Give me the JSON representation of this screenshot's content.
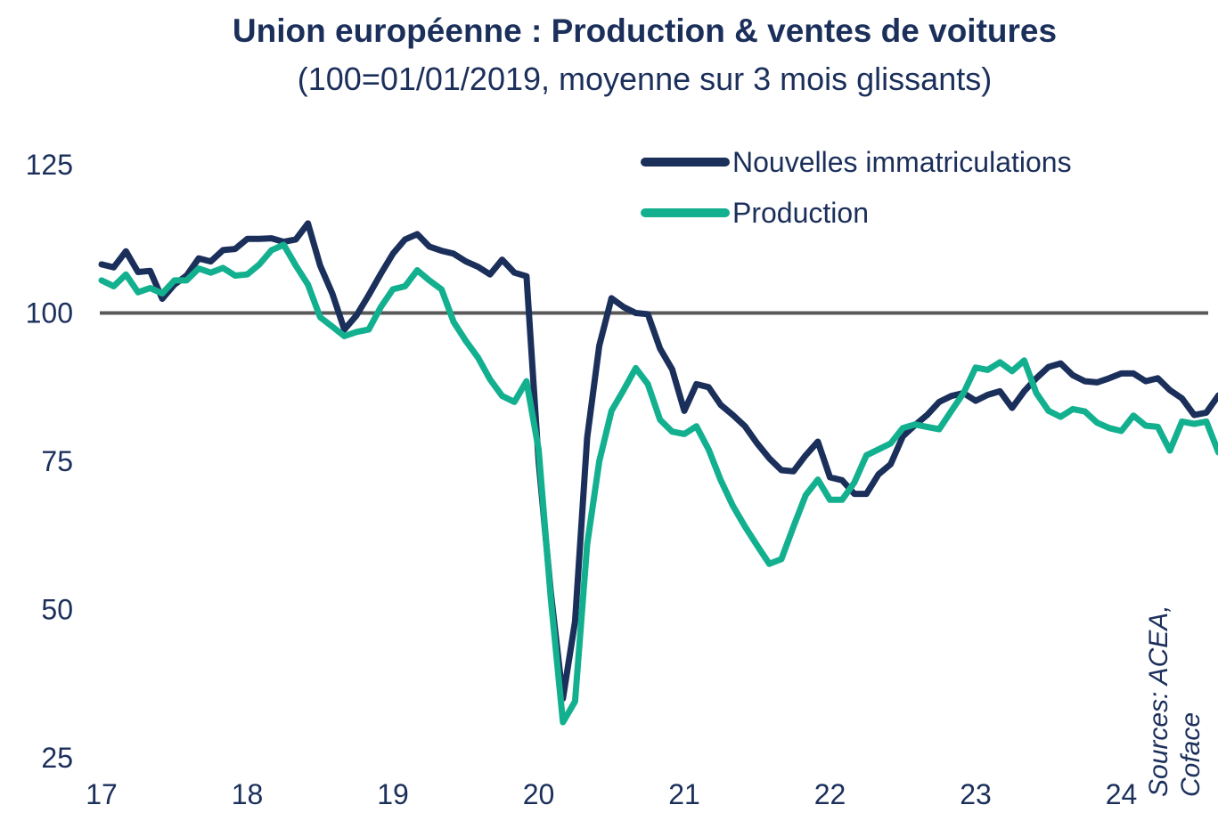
{
  "title": "Union européenne : Production & ventes de voitures",
  "subtitle": "(100=01/01/2019, moyenne sur 3 mois glissants)",
  "source": [
    "Sources: ACEA,",
    "Coface"
  ],
  "colors": {
    "registrations": "#1b2f5b",
    "production": "#13b08f",
    "reference": "#595959",
    "text": "#1b2f5b"
  },
  "chart_data": {
    "type": "line",
    "x_tick_labels": [
      "17",
      "18",
      "19",
      "20",
      "21",
      "22",
      "23",
      "24"
    ],
    "y_tick_labels": [
      "125",
      "100",
      "75",
      "50",
      "25"
    ],
    "xlim": [
      2017,
      2024.9
    ],
    "ylim": [
      25,
      125
    ],
    "reference_line": 100,
    "grid": false,
    "legend_position": "top-right",
    "x_step_months": 1,
    "x_start": "2017-01",
    "series": [
      {
        "name": "Nouvelles immatriculations",
        "color": "#1b2f5b",
        "values": [
          108.2,
          107.7,
          110.4,
          106.9,
          107.1,
          102.4,
          104.8,
          106.3,
          109.2,
          108.7,
          110.6,
          110.8,
          112.5,
          112.5,
          112.6,
          112.0,
          112.4,
          115.1,
          108.0,
          103.3,
          97.2,
          99.6,
          103.0,
          106.6,
          110.0,
          112.4,
          113.3,
          111.2,
          110.5,
          110.0,
          108.7,
          107.8,
          106.5,
          109.0,
          106.8,
          106.2,
          75.0,
          53.0,
          35.0,
          48.0,
          79.0,
          94.5,
          102.5,
          101.0,
          100.0,
          99.8,
          94.0,
          90.5,
          83.5,
          88.0,
          87.5,
          84.5,
          82.8,
          80.9,
          78.0,
          75.5,
          73.5,
          73.3,
          76.0,
          78.3,
          72.3,
          71.8,
          69.5,
          69.5,
          72.8,
          74.5,
          79.2,
          81.1,
          82.8,
          85.0,
          86.0,
          86.5,
          85.2,
          86.2,
          86.8,
          84.0,
          86.8,
          89.0,
          90.9,
          91.5,
          89.5,
          88.5,
          88.3,
          89.0,
          89.8,
          89.8,
          88.5,
          89.0,
          87.0,
          85.6,
          82.8,
          83.2,
          86.1
        ]
      },
      {
        "name": "Production",
        "color": "#13b08f",
        "values": [
          105.5,
          104.5,
          106.5,
          103.5,
          104.2,
          103.3,
          105.5,
          105.5,
          107.5,
          106.8,
          107.6,
          106.3,
          106.5,
          108.2,
          110.6,
          111.5,
          108.0,
          104.8,
          99.3,
          97.7,
          96.1,
          96.8,
          97.2,
          101.0,
          104.0,
          104.5,
          107.2,
          105.5,
          104.0,
          98.5,
          95.3,
          92.5,
          88.8,
          86.0,
          85.0,
          88.5,
          77.0,
          52.0,
          31.0,
          34.5,
          61.0,
          75.0,
          83.5,
          87.0,
          90.7,
          88.0,
          82.0,
          80.0,
          79.6,
          80.9,
          77.0,
          71.8,
          67.5,
          64.0,
          60.8,
          57.7,
          58.5,
          64.0,
          69.3,
          71.9,
          68.5,
          68.5,
          71.4,
          76.0,
          77.0,
          78.0,
          80.6,
          81.2,
          80.8,
          80.4,
          83.5,
          86.5,
          90.8,
          90.4,
          91.7,
          90.2,
          92.0,
          86.5,
          83.5,
          82.5,
          83.8,
          83.4,
          81.5,
          80.6,
          80.1,
          82.7,
          81.0,
          80.8,
          76.8,
          81.7,
          81.3,
          81.7,
          76.5
        ]
      }
    ]
  }
}
